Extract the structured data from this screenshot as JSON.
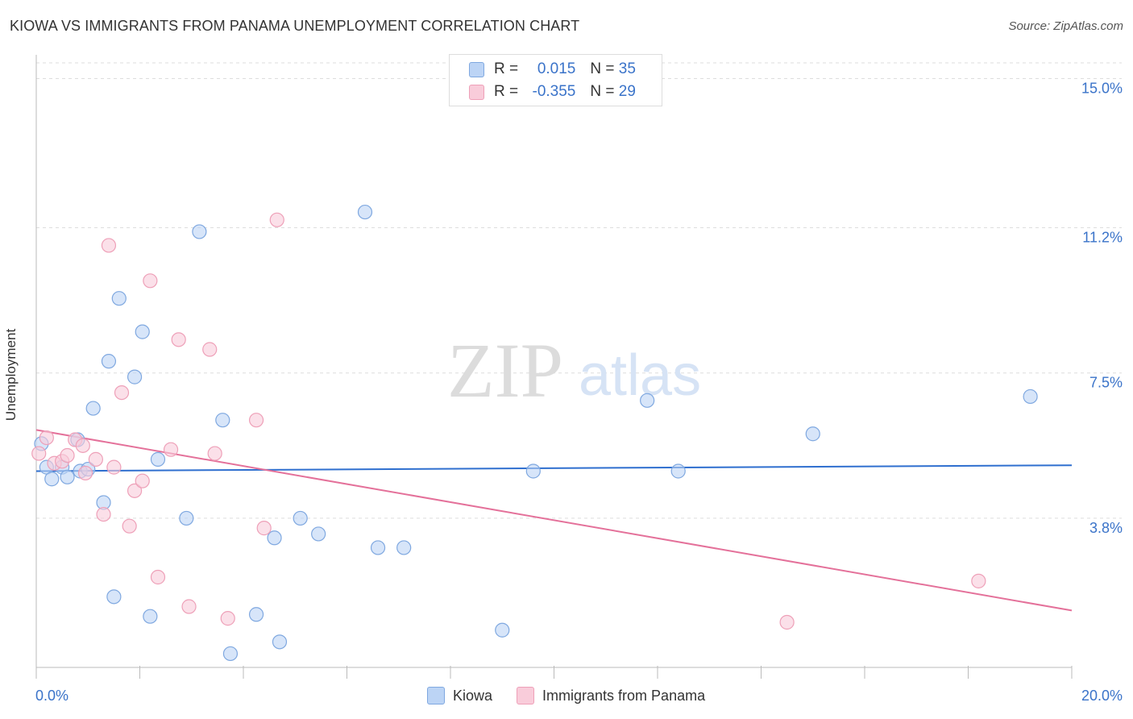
{
  "title": "KIOWA VS IMMIGRANTS FROM PANAMA UNEMPLOYMENT CORRELATION CHART",
  "source": "Source: ZipAtlas.com",
  "watermark": {
    "zip": "ZIP",
    "atlas": "atlas"
  },
  "colors": {
    "kiowa_fill": "#bcd4f5",
    "kiowa_stroke": "#7fa8e0",
    "kiowa_line": "#2f6fcf",
    "panama_fill": "#f9ccda",
    "panama_stroke": "#eea0b8",
    "panama_line": "#e4719a",
    "axis_text": "#3a73c9",
    "grid": "#dddddd"
  },
  "legend": {
    "kiowa": {
      "r_label": "R = ",
      "r_value": "0.015",
      "n_label": "N = ",
      "n_value": "35"
    },
    "panama": {
      "r_label": "R = ",
      "r_value": "-0.355",
      "n_label": "N = ",
      "n_value": "29"
    }
  },
  "chart_data": {
    "type": "scatter",
    "title": "KIOWA VS IMMIGRANTS FROM PANAMA UNEMPLOYMENT CORRELATION CHART",
    "xlabel": "",
    "ylabel": "Unemployment",
    "xlim": [
      0,
      20
    ],
    "ylim": [
      0,
      15.4
    ],
    "x_tick_labels": [
      "0.0%",
      "20.0%"
    ],
    "y_ticks": [
      3.8,
      7.5,
      11.2,
      15.0
    ],
    "y_tick_labels": [
      "3.8%",
      "7.5%",
      "11.2%",
      "15.0%"
    ],
    "grid": true,
    "series": [
      {
        "name": "Kiowa",
        "points": [
          [
            0.1,
            5.7
          ],
          [
            0.2,
            5.1
          ],
          [
            0.3,
            4.8
          ],
          [
            0.5,
            5.1
          ],
          [
            0.6,
            4.85
          ],
          [
            0.8,
            5.8
          ],
          [
            0.85,
            5.0
          ],
          [
            1.0,
            5.05
          ],
          [
            1.1,
            6.6
          ],
          [
            1.3,
            4.2
          ],
          [
            1.4,
            7.8
          ],
          [
            1.5,
            1.8
          ],
          [
            1.6,
            9.4
          ],
          [
            1.9,
            7.4
          ],
          [
            2.05,
            8.55
          ],
          [
            2.2,
            1.3
          ],
          [
            2.35,
            5.3
          ],
          [
            2.9,
            3.8
          ],
          [
            3.15,
            11.1
          ],
          [
            3.6,
            6.3
          ],
          [
            3.75,
            0.35
          ],
          [
            4.25,
            1.35
          ],
          [
            4.6,
            3.3
          ],
          [
            4.7,
            0.65
          ],
          [
            5.1,
            3.8
          ],
          [
            5.45,
            3.4
          ],
          [
            6.35,
            11.6
          ],
          [
            6.6,
            3.05
          ],
          [
            7.1,
            3.05
          ],
          [
            9.0,
            0.95
          ],
          [
            9.6,
            5.0
          ],
          [
            11.8,
            6.8
          ],
          [
            12.4,
            5.0
          ],
          [
            15.0,
            5.95
          ],
          [
            19.2,
            6.9
          ]
        ],
        "trend": {
          "x": [
            0,
            20
          ],
          "y": [
            5.0,
            5.15
          ]
        }
      },
      {
        "name": "Immigrants from Panama",
        "points": [
          [
            0.05,
            5.45
          ],
          [
            0.2,
            5.85
          ],
          [
            0.35,
            5.2
          ],
          [
            0.5,
            5.25
          ],
          [
            0.6,
            5.4
          ],
          [
            0.75,
            5.8
          ],
          [
            0.9,
            5.65
          ],
          [
            0.95,
            4.95
          ],
          [
            1.15,
            5.3
          ],
          [
            1.3,
            3.9
          ],
          [
            1.4,
            10.75
          ],
          [
            1.5,
            5.1
          ],
          [
            1.65,
            7.0
          ],
          [
            1.8,
            3.6
          ],
          [
            1.9,
            4.5
          ],
          [
            2.05,
            4.75
          ],
          [
            2.2,
            9.85
          ],
          [
            2.35,
            2.3
          ],
          [
            2.6,
            5.55
          ],
          [
            2.75,
            8.35
          ],
          [
            2.95,
            1.55
          ],
          [
            3.35,
            8.1
          ],
          [
            3.45,
            5.45
          ],
          [
            3.7,
            1.25
          ],
          [
            4.25,
            6.3
          ],
          [
            4.4,
            3.55
          ],
          [
            4.65,
            11.4
          ],
          [
            14.5,
            1.15
          ],
          [
            18.2,
            2.2
          ]
        ],
        "trend": {
          "x": [
            0,
            20
          ],
          "y": [
            6.05,
            1.45
          ]
        }
      }
    ]
  },
  "bottom_legend": {
    "kiowa_label": "Kiowa",
    "panama_label": "Immigrants from Panama"
  }
}
